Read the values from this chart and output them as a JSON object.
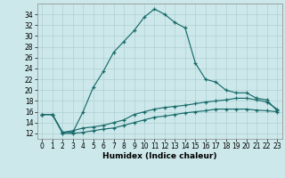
{
  "xlabel": "Humidex (Indice chaleur)",
  "background_color": "#cce8ea",
  "grid_color": "#b0d0d4",
  "line_color": "#1a6b6b",
  "x_ticks": [
    0,
    1,
    2,
    3,
    4,
    5,
    6,
    7,
    8,
    9,
    10,
    11,
    12,
    13,
    14,
    15,
    16,
    17,
    18,
    19,
    20,
    21,
    22,
    23
  ],
  "y_ticks": [
    12,
    14,
    16,
    18,
    20,
    22,
    24,
    26,
    28,
    30,
    32,
    34
  ],
  "ylim": [
    11.0,
    36.0
  ],
  "xlim": [
    -0.5,
    23.5
  ],
  "line1_x": [
    0,
    1,
    2,
    3,
    4,
    5,
    6,
    7,
    8,
    9,
    10,
    11,
    12,
    13,
    14,
    15,
    16,
    17,
    18,
    19,
    20,
    21,
    22,
    23
  ],
  "line1_y": [
    15.5,
    15.5,
    12.2,
    12.2,
    16.0,
    20.5,
    23.5,
    27.0,
    29.0,
    31.0,
    33.5,
    35.0,
    34.0,
    32.5,
    31.5,
    25.0,
    22.0,
    21.5,
    20.0,
    19.5,
    19.5,
    18.5,
    18.2,
    16.2
  ],
  "line2_x": [
    0,
    1,
    2,
    3,
    4,
    5,
    6,
    7,
    8,
    9,
    10,
    11,
    12,
    13,
    14,
    15,
    16,
    17,
    18,
    19,
    20,
    21,
    22,
    23
  ],
  "line2_y": [
    15.5,
    15.5,
    12.2,
    12.5,
    13.0,
    13.2,
    13.5,
    14.0,
    14.5,
    15.5,
    16.0,
    16.5,
    16.8,
    17.0,
    17.2,
    17.5,
    17.8,
    18.0,
    18.2,
    18.5,
    18.5,
    18.2,
    17.8,
    16.5
  ],
  "line3_x": [
    0,
    1,
    2,
    3,
    4,
    5,
    6,
    7,
    8,
    9,
    10,
    11,
    12,
    13,
    14,
    15,
    16,
    17,
    18,
    19,
    20,
    21,
    22,
    23
  ],
  "line3_y": [
    15.5,
    15.5,
    12.0,
    12.0,
    12.2,
    12.5,
    12.8,
    13.0,
    13.5,
    14.0,
    14.5,
    15.0,
    15.2,
    15.5,
    15.8,
    16.0,
    16.2,
    16.5,
    16.5,
    16.5,
    16.5,
    16.3,
    16.2,
    16.0
  ],
  "tick_fontsize": 5.5,
  "xlabel_fontsize": 6.5
}
